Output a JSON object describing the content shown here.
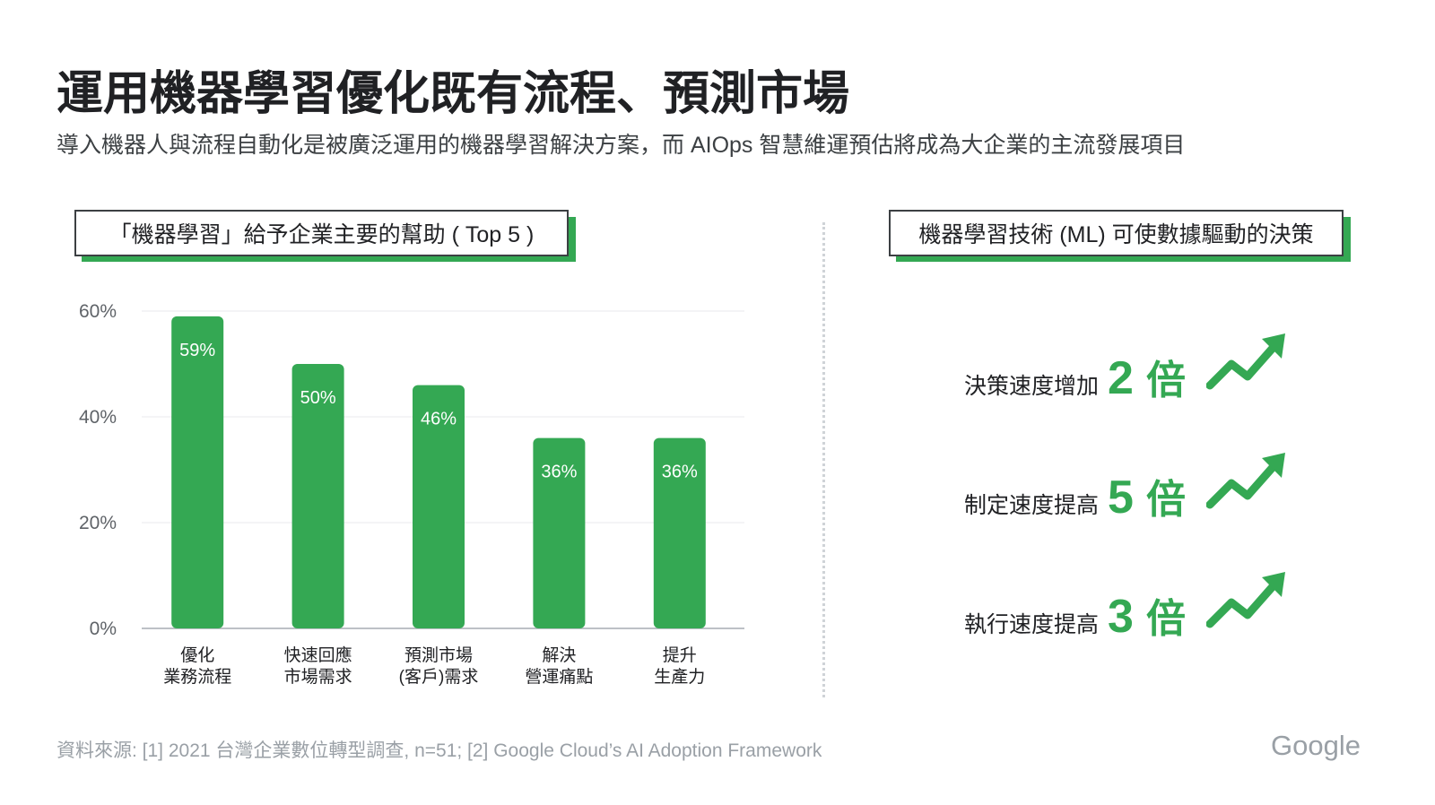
{
  "title": "運用機器學習優化既有流程、預測市場",
  "subtitle": "導入機器人與流程自動化是被廣泛運用的機器學習解決方案，而  AIOps 智慧維運預估將成為大企業的主流發展項目",
  "left_box_label": "「機器學習」給予企業主要的幫助 ( Top 5 )",
  "right_box_label": "機器學習技術 (ML) 可使數據驅動的決策",
  "chart_data": {
    "type": "bar",
    "categories": [
      [
        "優化",
        "業務流程"
      ],
      [
        "快速回應",
        "市場需求"
      ],
      [
        "預測市場",
        "(客戶)需求"
      ],
      [
        "解決",
        "營運痛點"
      ],
      [
        "提升",
        "生產力"
      ]
    ],
    "values": [
      59,
      50,
      46,
      36,
      36
    ],
    "data_labels": [
      "59%",
      "50%",
      "46%",
      "36%",
      "36%"
    ],
    "yticks": [
      "0%",
      "20%",
      "40%",
      "60%"
    ],
    "ylim": [
      0,
      60
    ],
    "grid": true,
    "bar_color": "#34a853"
  },
  "metrics": [
    {
      "label": "決策速度增加",
      "value": "2",
      "unit": "倍"
    },
    {
      "label": "制定速度提高",
      "value": "5",
      "unit": "倍"
    },
    {
      "label": "執行速度提高",
      "value": "3",
      "unit": "倍"
    }
  ],
  "source": "資料來源: [1] 2021 台灣企業數位轉型調查, n=51; [2] Google Cloud’s AI Adoption Framework",
  "logo": "Google",
  "icons": {
    "trend": "trending-up-icon"
  },
  "colors": {
    "accent": "#34a853",
    "text": "#202124",
    "muted": "#9aa0a6"
  }
}
